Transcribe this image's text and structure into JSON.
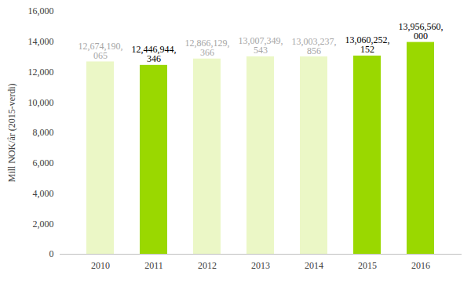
{
  "chart_data": {
    "type": "bar",
    "y_label": "Mill NOK/år (2015-verdi)",
    "categories": [
      "2010",
      "2011",
      "2012",
      "2013",
      "2014",
      "2015",
      "2016"
    ],
    "values": [
      12674.190065,
      12446.944346,
      12866.129366,
      13007.349543,
      13003.237856,
      13060.252152,
      13956.56
    ],
    "value_labels": [
      "12,674,190,065",
      "12,446,944,346",
      "12,866,129,366",
      "13,007,349,543",
      "13,003,237,856",
      "13,060,252,152",
      "13,956,560,000"
    ],
    "colors": [
      "#ebf7c6",
      "#9ad800",
      "#ebf7c6",
      "#ebf7c6",
      "#ebf7c6",
      "#9ad800",
      "#9ad800"
    ],
    "data_labels": true,
    "grid": false,
    "ylim": [
      0,
      16000
    ],
    "yticks": [
      0,
      {
        "value": 2000,
        "label": "2,000"
      },
      {
        "value": 4000,
        "label": "4,000"
      },
      {
        "value": 6000,
        "label": "6,000"
      },
      {
        "value": 8000,
        "label": "8,000"
      },
      {
        "value": 10000,
        "label": "10,000"
      },
      {
        "value": 12000,
        "label": "12,000"
      },
      {
        "value": 14000,
        "label": "14,000"
      },
      {
        "value": 16000,
        "label": "16,000"
      }
    ]
  }
}
